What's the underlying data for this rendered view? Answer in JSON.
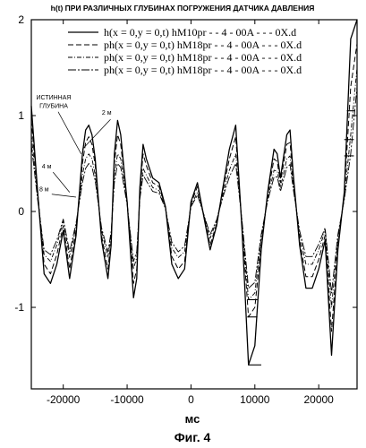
{
  "chart_data": {
    "type": "line",
    "title": "h(t) ПРИ РАЗЛИЧНЫХ ГЛУБИНАХ ПОГРУЖЕНИЯ ДАТЧИКА ДАВЛЕНИЯ",
    "xlabel": "мс",
    "ylabel": "",
    "caption": "Фиг. 4",
    "xlim": [
      -25000,
      26000
    ],
    "ylim": [
      -1.85,
      2.0
    ],
    "xticks": [
      -20000,
      -10000,
      0,
      10000,
      20000
    ],
    "xtick_labels": [
      "-20000",
      "-10000",
      "0",
      "10000",
      "20000"
    ],
    "yticks": [
      2,
      1,
      0,
      -1
    ],
    "ytick_labels": [
      "2",
      "1",
      "0",
      "-1"
    ],
    "grid": false,
    "legend_position": "top-right",
    "annotations": [
      {
        "text": "ИСТИННАЯ",
        "x": -21500,
        "y": 1.17
      },
      {
        "text": "ГЛУБИНА",
        "x": -21500,
        "y": 1.08
      },
      {
        "text": "2 м",
        "x": -13200,
        "y": 1.01
      },
      {
        "text": "4 м",
        "x": -22600,
        "y": 0.45
      },
      {
        "text": "8 м",
        "x": -23000,
        "y": 0.21
      }
    ],
    "x": [
      -25000,
      -24000,
      -23000,
      -22000,
      -21000,
      -20000,
      -19000,
      -18000,
      -17000,
      -16500,
      -16000,
      -15500,
      -15000,
      -14000,
      -13000,
      -12500,
      -12000,
      -11500,
      -11000,
      -10000,
      -9000,
      -8500,
      -8000,
      -7500,
      -7000,
      -6000,
      -5000,
      -4000,
      -3000,
      -2000,
      -1000,
      0,
      1000,
      2000,
      3000,
      4000,
      5000,
      6000,
      7000,
      8000,
      9000,
      10000,
      11000,
      12000,
      13000,
      13500,
      14000,
      15000,
      15500,
      16000,
      17000,
      18000,
      19000,
      20000,
      21000,
      22000,
      23000,
      24000,
      25000,
      26000
    ],
    "series": [
      {
        "name": "h(x = 0,y = 0,t)  hM10pr - - 4 - 00A - - - 0X.d",
        "style": "solid",
        "values": [
          1.1,
          0.2,
          -0.65,
          -0.75,
          -0.55,
          -0.2,
          -0.7,
          -0.25,
          0.6,
          0.85,
          0.9,
          0.8,
          0.55,
          -0.3,
          -0.7,
          -0.35,
          0.6,
          0.95,
          0.8,
          0.1,
          -0.9,
          -0.7,
          0.25,
          0.7,
          0.55,
          0.35,
          0.3,
          0.05,
          -0.55,
          -0.7,
          -0.6,
          0.1,
          0.3,
          -0.05,
          -0.4,
          -0.15,
          0.25,
          0.65,
          0.9,
          -0.2,
          -1.6,
          -1.4,
          -0.4,
          0.2,
          0.65,
          0.6,
          0.35,
          0.8,
          0.85,
          0.4,
          -0.35,
          -0.8,
          -0.8,
          -0.6,
          -0.3,
          -1.5,
          -0.4,
          0.2,
          1.8,
          2.0
        ]
      },
      {
        "name": "ph(x = 0,y = 0,t)  hM18pr - - 4 - 00A - - - 0X.d",
        "style": "dashed",
        "values": [
          0.95,
          0.2,
          -0.55,
          -0.65,
          -0.45,
          -0.15,
          -0.6,
          -0.2,
          0.5,
          0.72,
          0.78,
          0.7,
          0.48,
          -0.25,
          -0.6,
          -0.3,
          0.5,
          0.8,
          0.7,
          0.1,
          -0.75,
          -0.6,
          0.2,
          0.6,
          0.48,
          0.3,
          0.26,
          0.05,
          -0.47,
          -0.6,
          -0.52,
          0.08,
          0.26,
          -0.04,
          -0.35,
          -0.13,
          0.22,
          0.55,
          0.78,
          -0.15,
          -1.1,
          -1.0,
          -0.35,
          0.17,
          0.55,
          0.52,
          0.3,
          0.7,
          0.72,
          0.35,
          -0.3,
          -0.68,
          -0.68,
          -0.5,
          -0.25,
          -1.25,
          -0.35,
          0.17,
          1.3,
          1.75
        ]
      },
      {
        "name": "ph(x = 0,y = 0,t)  hM18pr - - 4 - 00A - - - 0X.d",
        "style": "dash-dot",
        "values": [
          0.8,
          0.15,
          -0.45,
          -0.52,
          -0.35,
          -0.1,
          -0.48,
          -0.15,
          0.38,
          0.55,
          0.6,
          0.55,
          0.38,
          -0.2,
          -0.48,
          -0.24,
          0.38,
          0.6,
          0.55,
          0.08,
          -0.6,
          -0.48,
          0.16,
          0.45,
          0.38,
          0.25,
          0.22,
          0.04,
          -0.38,
          -0.48,
          -0.42,
          0.06,
          0.2,
          -0.03,
          -0.28,
          -0.1,
          0.18,
          0.43,
          0.6,
          -0.12,
          -0.92,
          -0.85,
          -0.28,
          0.13,
          0.43,
          0.42,
          0.25,
          0.55,
          0.58,
          0.28,
          -0.24,
          -0.55,
          -0.55,
          -0.4,
          -0.2,
          -1.0,
          -0.28,
          0.14,
          0.8,
          1.5
        ]
      },
      {
        "name": "ph(x = 0,y = 0,t)  hM18pr - - 4 - 00A - - - 0X.d",
        "style": "long-dash-dot",
        "values": [
          0.7,
          0.12,
          -0.4,
          -0.45,
          -0.3,
          -0.08,
          -0.42,
          -0.12,
          0.3,
          0.45,
          0.5,
          0.46,
          0.32,
          -0.17,
          -0.42,
          -0.21,
          0.3,
          0.5,
          0.46,
          0.07,
          -0.52,
          -0.42,
          0.13,
          0.38,
          0.32,
          0.21,
          0.19,
          0.03,
          -0.32,
          -0.42,
          -0.36,
          0.05,
          0.17,
          -0.03,
          -0.24,
          -0.09,
          0.15,
          0.36,
          0.5,
          -0.1,
          -0.8,
          -0.74,
          -0.24,
          0.11,
          0.36,
          0.36,
          0.21,
          0.46,
          0.49,
          0.24,
          -0.2,
          -0.47,
          -0.47,
          -0.34,
          -0.17,
          -0.85,
          -0.24,
          0.12,
          0.6,
          1.3
        ]
      }
    ]
  }
}
